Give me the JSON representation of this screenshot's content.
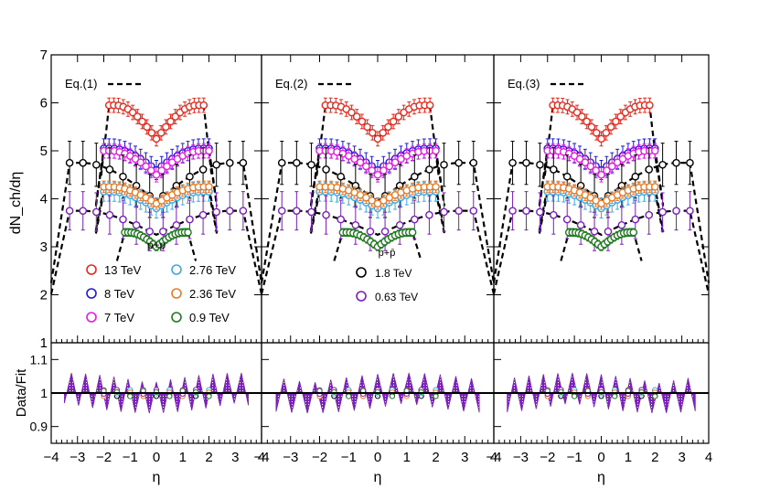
{
  "chart_data": {
    "type": "scatter",
    "x_label": "η",
    "y_label_top": "dN_ch/dη",
    "y_label_bottom": "Data/Fit",
    "x_range": [
      -4,
      4
    ],
    "x_ticks": [
      "−4",
      "−3",
      "−2",
      "−1",
      "0",
      "1",
      "2",
      "3",
      "4"
    ],
    "top_y_range": [
      1,
      7
    ],
    "top_y_ticks": [
      "1",
      "2",
      "3",
      "4",
      "5",
      "6",
      "7"
    ],
    "bottom_y_range": [
      0.85,
      1.15
    ],
    "bottom_y_ticks": [
      "0.9",
      "1",
      "1.1"
    ],
    "colors": {
      "13 TeV": "#e8281c",
      "8 TeV": "#1a1ae0",
      "7 TeV": "#e619e6",
      "2.76 TeV": "#3ca8e6",
      "2.36 TeV": "#f07820",
      "0.9 TeV": "#1f7a1f",
      "1.8 TeV": "#000000",
      "0.63 TeV": "#7a1fb8",
      "band": "#7a1fb8"
    },
    "panels": [
      {
        "fit_label": "Eq.(1)",
        "legend_heading": "p+p",
        "legend_entries": [
          {
            "label": "13 TeV",
            "color": "#e8281c"
          },
          {
            "label": "2.76 TeV",
            "color": "#3ca8e6"
          },
          {
            "label": "8 TeV",
            "color": "#1a1ae0"
          },
          {
            "label": "2.36 TeV",
            "color": "#f07820"
          },
          {
            "label": "7 TeV",
            "color": "#e619e6"
          },
          {
            "label": "0.9 TeV",
            "color": "#1f7a1f"
          }
        ]
      },
      {
        "fit_label": "Eq.(2)",
        "legend_heading": "p+p̄",
        "legend_entries": [
          {
            "label": "1.8 TeV",
            "color": "#000000"
          },
          {
            "label": "0.63 TeV",
            "color": "#7a1fb8"
          }
        ]
      },
      {
        "fit_label": "Eq.(3)",
        "legend_heading": "",
        "legend_entries": []
      }
    ],
    "series": [
      {
        "name": "13 TeV",
        "color": "#e8281c",
        "eta_range": [
          -1.8,
          1.8
        ],
        "center": 5.25,
        "edge": 5.95,
        "err": 0.15
      },
      {
        "name": "8 TeV",
        "color": "#1a1ae0",
        "eta_range": [
          -2.0,
          2.0
        ],
        "center": 4.6,
        "edge": 5.05,
        "err": 0.2
      },
      {
        "name": "7 TeV",
        "color": "#e619e6",
        "eta_range": [
          -2.0,
          2.0
        ],
        "center": 4.5,
        "edge": 5.0,
        "err": 0.15
      },
      {
        "name": "1.8 TeV",
        "color": "#000000",
        "eta_range": [
          -3.3,
          3.3
        ],
        "center": 3.95,
        "edge": 4.75,
        "err": 0.45
      },
      {
        "name": "2.76 TeV",
        "color": "#3ca8e6",
        "eta_range": [
          -2.0,
          2.0
        ],
        "center": 3.8,
        "edge": 4.15,
        "err": 0.2
      },
      {
        "name": "2.36 TeV",
        "color": "#f07820",
        "eta_range": [
          -2.0,
          2.0
        ],
        "center": 3.9,
        "edge": 4.25,
        "err": 0.12
      },
      {
        "name": "0.63 TeV",
        "color": "#7a1fb8",
        "eta_range": [
          -3.3,
          3.3
        ],
        "center": 3.25,
        "edge": 3.75,
        "err": 0.4
      },
      {
        "name": "0.9 TeV",
        "color": "#1f7a1f",
        "eta_range": [
          -1.2,
          1.2
        ],
        "center": 3.0,
        "edge": 3.3,
        "err": 0.08
      }
    ],
    "ratio_band_amplitude": 0.06
  }
}
